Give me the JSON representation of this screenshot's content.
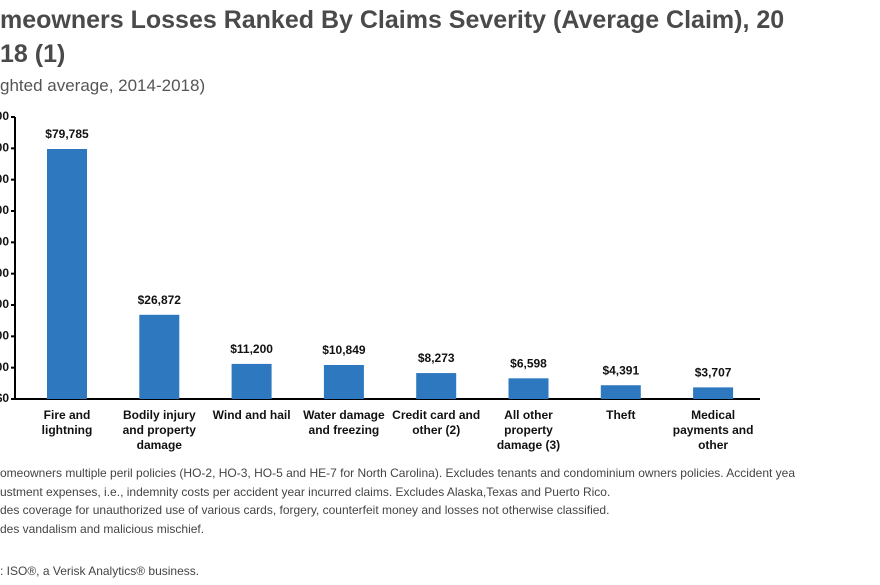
{
  "chart_data": {
    "type": "bar",
    "title_lines": [
      "meowners Losses Ranked By Claims Severity (Average Claim), 20",
      "18 (1)"
    ],
    "subtitle": "ghted average, 2014-2018)",
    "categories": [
      "Fire and lightning",
      "Bodily injury and property damage",
      "Wind and hail",
      "Water damage and freezing",
      "Credit card and other (2)",
      "All other property damage (3)",
      "Theft",
      "Medical payments and other"
    ],
    "values": [
      79785,
      26872,
      11200,
      10849,
      8273,
      6598,
      4391,
      3707
    ],
    "value_labels": [
      "$79,785",
      "$26,872",
      "$11,200",
      "$10,849",
      "$8,273",
      "$6,598",
      "$4,391",
      "$3,707"
    ],
    "color": "#2e78bf",
    "ylim": [
      0,
      90000
    ],
    "yticks": [
      {
        "value": 0,
        "label": "$0"
      },
      {
        "value": 10000,
        "label": "00"
      },
      {
        "value": 20000,
        "label": "00"
      },
      {
        "value": 30000,
        "label": "00"
      },
      {
        "value": 40000,
        "label": "00"
      },
      {
        "value": 50000,
        "label": "00"
      },
      {
        "value": 60000,
        "label": "00"
      },
      {
        "value": 70000,
        "label": "00"
      },
      {
        "value": 80000,
        "label": "00"
      },
      {
        "value": 90000,
        "label": "00"
      }
    ],
    "notes": [
      "omeowners multiple peril policies (HO-2, HO-3, HO-5 and HE-7 for North Carolina). Excludes tenants and condominium owners policies. Accident yea",
      "ustment expenses, i.e., indemnity costs per accident year incurred claims. Excludes Alaska,Texas and Puerto Rico.",
      "des coverage for unauthorized use of various cards, forgery, counterfeit money and losses not otherwise classified.",
      "des vandalism and malicious mischief."
    ],
    "source": ": ISO®, a Verisk Analytics® business."
  }
}
